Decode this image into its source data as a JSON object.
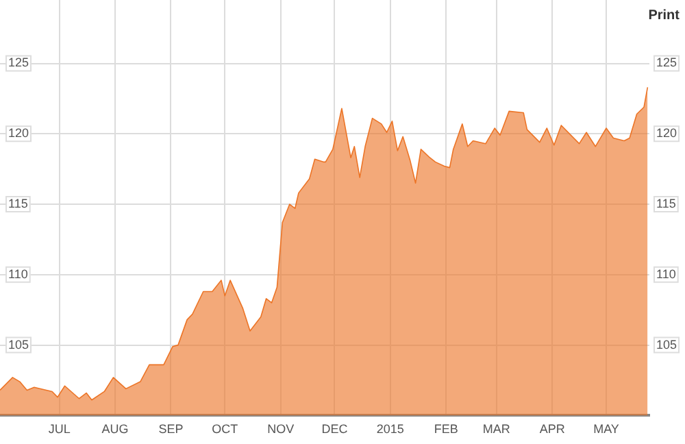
{
  "chart_data": {
    "type": "area",
    "annotations": [
      "Print"
    ],
    "x": [
      "2014-05-29",
      "2014-06-05",
      "2014-06-09",
      "2014-06-13",
      "2014-06-17",
      "2014-06-27",
      "2014-06-30",
      "2014-07-04",
      "2014-07-12",
      "2014-07-16",
      "2014-07-19",
      "2014-07-26",
      "2014-07-31",
      "2014-08-07",
      "2014-08-15",
      "2014-08-20",
      "2014-08-28",
      "2014-09-02",
      "2014-09-05",
      "2014-09-10",
      "2014-09-13",
      "2014-09-19",
      "2014-09-24",
      "2014-09-29",
      "2014-10-01",
      "2014-10-04",
      "2014-10-11",
      "2014-10-15",
      "2014-10-21",
      "2014-10-24",
      "2014-10-27",
      "2014-10-30",
      "2014-11-02",
      "2014-11-06",
      "2014-11-09",
      "2014-11-11",
      "2014-11-17",
      "2014-11-20",
      "2014-11-25",
      "2014-11-26",
      "2014-11-30",
      "2014-12-05",
      "2014-12-10",
      "2014-12-12",
      "2014-12-15",
      "2014-12-18",
      "2014-12-22",
      "2014-12-27",
      "2014-12-30",
      "2015-01-02",
      "2015-01-05",
      "2015-01-08",
      "2015-01-12",
      "2015-01-15",
      "2015-01-18",
      "2015-01-23",
      "2015-01-26",
      "2015-01-31",
      "2015-02-03",
      "2015-02-05",
      "2015-02-10",
      "2015-02-13",
      "2015-02-16",
      "2015-02-23",
      "2015-02-28",
      "2015-03-03",
      "2015-03-08",
      "2015-03-16",
      "2015-03-18",
      "2015-03-25",
      "2015-03-29",
      "2015-04-02",
      "2015-04-06",
      "2015-04-16",
      "2015-04-20",
      "2015-04-25",
      "2015-05-01",
      "2015-05-05",
      "2015-05-11",
      "2015-05-14",
      "2015-05-18",
      "2015-05-22",
      "2015-05-24"
    ],
    "series": [
      {
        "color": "#ec7426",
        "values": [
          101.8,
          102.7,
          102.4,
          101.8,
          102.0,
          101.7,
          101.3,
          102.1,
          101.2,
          101.6,
          101.1,
          101.7,
          102.7,
          101.9,
          102.4,
          103.6,
          103.6,
          104.9,
          105.0,
          106.8,
          107.2,
          108.8,
          108.8,
          109.6,
          108.5,
          109.6,
          107.6,
          106.0,
          107.0,
          108.3,
          108.0,
          109.1,
          113.7,
          115.0,
          114.7,
          115.8,
          116.8,
          118.2,
          118.0,
          118.0,
          118.9,
          121.8,
          118.3,
          119.1,
          116.9,
          119.1,
          121.1,
          120.7,
          120.1,
          120.9,
          118.8,
          119.8,
          118.1,
          116.5,
          118.9,
          118.3,
          118.0,
          117.7,
          117.6,
          118.9,
          120.7,
          119.1,
          119.5,
          119.3,
          120.4,
          119.9,
          121.6,
          121.5,
          120.3,
          119.4,
          120.4,
          119.2,
          120.6,
          119.3,
          120.1,
          119.1,
          120.4,
          119.7,
          119.5,
          119.7,
          121.4,
          121.9,
          123.3
        ]
      }
    ],
    "xlim": [
      "2014-05-29",
      "2015-05-25"
    ],
    "xticks": [
      {
        "value": "2014-07-01",
        "label": "JUL"
      },
      {
        "value": "2014-08-01",
        "label": "AUG"
      },
      {
        "value": "2014-09-01",
        "label": "SEP"
      },
      {
        "value": "2014-10-01",
        "label": "OCT"
      },
      {
        "value": "2014-11-01",
        "label": "NOV"
      },
      {
        "value": "2014-12-01",
        "label": "DEC"
      },
      {
        "value": "2015-01-01",
        "label": "2015"
      },
      {
        "value": "2015-02-01",
        "label": "FEB"
      },
      {
        "value": "2015-03-01",
        "label": "MAR"
      },
      {
        "value": "2015-04-01",
        "label": "APR"
      },
      {
        "value": "2015-05-01",
        "label": "MAY"
      }
    ],
    "ylim": [
      100,
      129.5
    ],
    "yticks": [
      105,
      110,
      115,
      120,
      125
    ],
    "y2lim": [
      100,
      129.5
    ],
    "y2ticks": [
      105,
      110,
      115,
      120,
      125
    ],
    "grid": true,
    "legend": false
  }
}
